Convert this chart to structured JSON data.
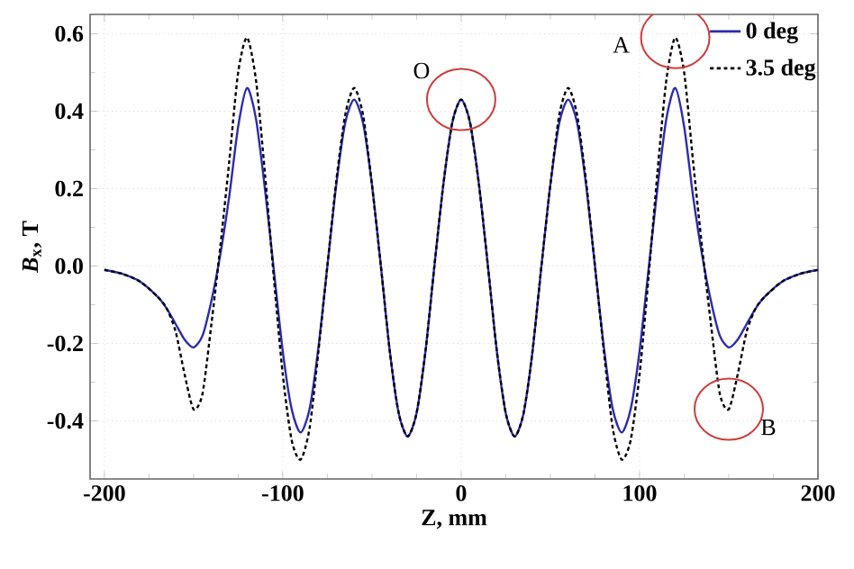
{
  "chart_data": {
    "type": "line",
    "xlabel": "Z, mm",
    "ylabel": "*B*$_{x}$, T",
    "xlim": [
      -208,
      200
    ],
    "ylim": [
      -0.55,
      0.65
    ],
    "xticks": [
      -200,
      -100,
      0,
      100,
      200
    ],
    "yticks": [
      -0.4,
      -0.2,
      {
        "value": 0,
        "label": "0.0"
      },
      0.2,
      0.4,
      0.6
    ],
    "grid": true,
    "legend": "top right",
    "series": [
      {
        "name": "0 deg",
        "color": "#2b2bb0",
        "line_style": "solid",
        "x": [
          -200,
          -190,
          -180,
          -170,
          -165,
          -160,
          -155,
          -150,
          -145,
          -140,
          -135,
          -130,
          -125,
          -120,
          -115,
          -110,
          -105,
          -100,
          -95,
          -90,
          -85,
          -80,
          -75,
          -70,
          -65,
          -60,
          -55,
          -50,
          -45,
          -40,
          -35,
          -30,
          -25,
          -20,
          -15,
          -10,
          -5,
          0,
          5,
          10,
          15,
          20,
          25,
          30,
          35,
          40,
          45,
          50,
          55,
          60,
          65,
          70,
          75,
          80,
          85,
          90,
          95,
          100,
          105,
          110,
          115,
          120,
          125,
          130,
          135,
          140,
          145,
          150,
          155,
          160,
          165,
          170,
          180,
          190,
          200
        ],
        "values": [
          -0.01,
          -0.02,
          -0.04,
          -0.08,
          -0.11,
          -0.15,
          -0.19,
          -0.21,
          -0.18,
          -0.09,
          0.03,
          0.18,
          0.36,
          0.46,
          0.38,
          0.2,
          -0.01,
          -0.22,
          -0.37,
          -0.43,
          -0.37,
          -0.21,
          0.0,
          0.21,
          0.37,
          0.43,
          0.37,
          0.21,
          0.0,
          -0.22,
          -0.38,
          -0.44,
          -0.38,
          -0.22,
          0.0,
          0.21,
          0.37,
          0.43,
          0.37,
          0.21,
          0.0,
          -0.22,
          -0.38,
          -0.44,
          -0.38,
          -0.22,
          0.0,
          0.21,
          0.37,
          0.43,
          0.37,
          0.21,
          0.0,
          -0.21,
          -0.37,
          -0.43,
          -0.37,
          -0.22,
          -0.01,
          0.2,
          0.38,
          0.46,
          0.36,
          0.18,
          0.03,
          -0.09,
          -0.18,
          -0.21,
          -0.19,
          -0.15,
          -0.11,
          -0.08,
          -0.04,
          -0.02,
          -0.01
        ]
      },
      {
        "name": "3.5 deg",
        "color": "#000000",
        "line_style": "dotted",
        "x": [
          -200,
          -190,
          -180,
          -170,
          -165,
          -160,
          -155,
          -150,
          -145,
          -140,
          -135,
          -130,
          -125,
          -120,
          -115,
          -110,
          -105,
          -100,
          -95,
          -90,
          -85,
          -80,
          -75,
          -70,
          -65,
          -60,
          -55,
          -50,
          -45,
          -40,
          -35,
          -30,
          -25,
          -20,
          -15,
          -10,
          -5,
          0,
          5,
          10,
          15,
          20,
          25,
          30,
          35,
          40,
          45,
          50,
          55,
          60,
          65,
          70,
          75,
          80,
          85,
          90,
          95,
          100,
          105,
          110,
          115,
          120,
          125,
          130,
          135,
          140,
          145,
          150,
          155,
          160,
          165,
          170,
          180,
          190,
          200
        ],
        "values": [
          -0.01,
          -0.02,
          -0.04,
          -0.08,
          -0.11,
          -0.17,
          -0.28,
          -0.37,
          -0.33,
          -0.15,
          0.05,
          0.27,
          0.5,
          0.59,
          0.48,
          0.24,
          -0.03,
          -0.28,
          -0.45,
          -0.5,
          -0.42,
          -0.22,
          0.0,
          0.22,
          0.39,
          0.46,
          0.39,
          0.21,
          0.0,
          -0.22,
          -0.38,
          -0.44,
          -0.38,
          -0.22,
          0.0,
          0.21,
          0.37,
          0.43,
          0.37,
          0.21,
          0.0,
          -0.22,
          -0.38,
          -0.44,
          -0.38,
          -0.22,
          0.0,
          0.21,
          0.39,
          0.46,
          0.39,
          0.22,
          0.0,
          -0.22,
          -0.42,
          -0.5,
          -0.45,
          -0.28,
          -0.03,
          0.24,
          0.48,
          0.59,
          0.5,
          0.27,
          0.05,
          -0.15,
          -0.33,
          -0.37,
          -0.28,
          -0.17,
          -0.11,
          -0.08,
          -0.04,
          -0.02,
          -0.01
        ]
      }
    ],
    "annotations": [
      {
        "text": "O",
        "x": 0,
        "y": 0.43
      },
      {
        "text": "A",
        "x": 120,
        "y": 0.59
      },
      {
        "text": "B",
        "x": 150,
        "y": -0.37
      }
    ]
  }
}
